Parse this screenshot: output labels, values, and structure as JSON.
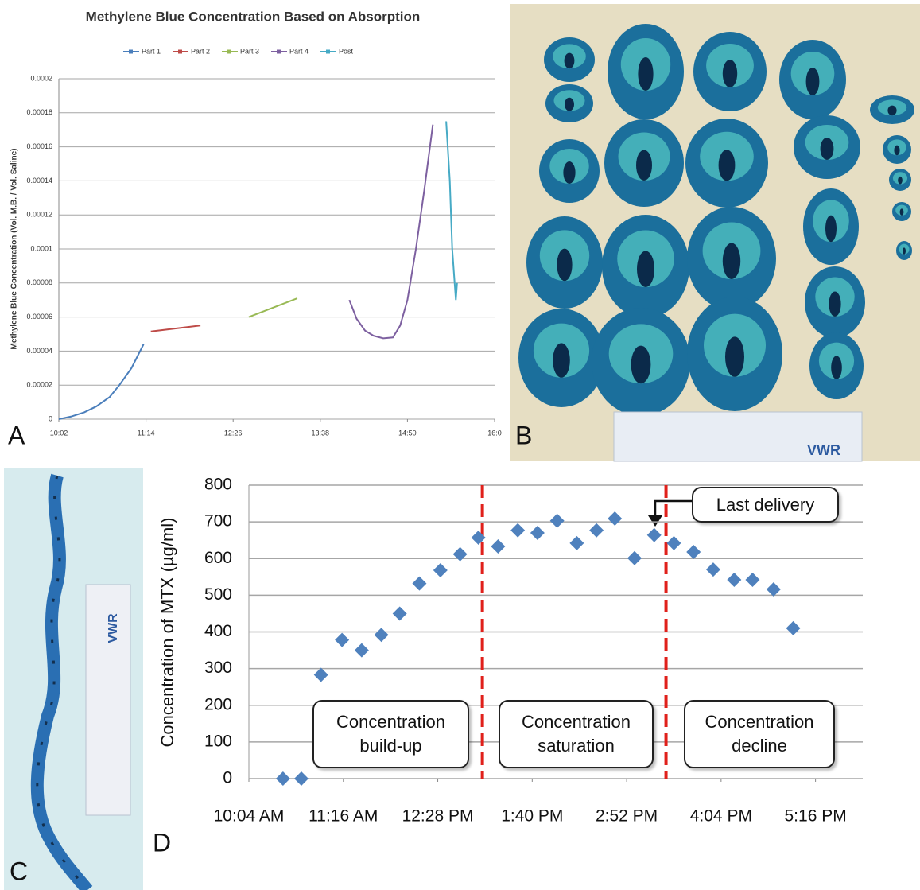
{
  "panel_labels": [
    "A",
    "B",
    "C",
    "D"
  ],
  "photos": [
    {
      "ruler_label": "VWR"
    },
    {
      "ruler_label": "VWR"
    }
  ],
  "chart_data": [
    {
      "type": "line",
      "title": "Methylene Blue Concentration Based on Absorption",
      "y_label": "Methylene Blue Concentration (Vol. M.B. / Vol. Saline)",
      "xlim": [
        602,
        962
      ],
      "xticks": [
        {
          "value": 602,
          "label": "10:02"
        },
        {
          "value": 674,
          "label": "11:14"
        },
        {
          "value": 746,
          "label": "12:26"
        },
        {
          "value": 818,
          "label": "13:38"
        },
        {
          "value": 890,
          "label": "14:50"
        },
        {
          "value": 962,
          "label": "16:0"
        }
      ],
      "ylim": [
        0,
        0.0002
      ],
      "yticks": [
        0,
        2e-05,
        4e-05,
        6e-05,
        8e-05,
        0.0001,
        0.00012,
        0.00014,
        0.00016,
        0.00018,
        0.0002
      ],
      "grid": true,
      "legend": "top",
      "series": [
        {
          "name": "Part 1",
          "color": "#4a7ebb",
          "x": [
            602,
            612,
            623,
            633,
            644,
            652,
            662,
            672
          ],
          "values": [
            0,
            1.5e-06,
            4e-06,
            7.5e-06,
            1.3e-05,
            2e-05,
            3e-05,
            4.4e-05
          ]
        },
        {
          "name": "Part 2",
          "color": "#be4b48",
          "x": [
            678,
            719
          ],
          "values": [
            5.15e-05,
            5.5e-05
          ]
        },
        {
          "name": "Part 3",
          "color": "#98b954",
          "x": [
            759,
            799
          ],
          "values": [
            6e-05,
            7.1e-05
          ]
        },
        {
          "name": "Part 4",
          "color": "#7d60a0",
          "x": [
            842,
            848,
            855,
            862,
            870,
            878,
            884,
            890,
            897,
            904,
            911
          ],
          "values": [
            7e-05,
            5.9e-05,
            5.2e-05,
            4.9e-05,
            4.75e-05,
            4.8e-05,
            5.5e-05,
            7e-05,
            0.0001,
            0.000135,
            0.000173
          ]
        },
        {
          "name": "Post",
          "color": "#46aac5",
          "x": [
            922,
            925,
            927,
            929,
            930,
            931
          ],
          "values": [
            0.000175,
            0.00014,
            0.0001,
            8e-05,
            7e-05,
            8e-05
          ]
        }
      ]
    },
    {
      "type": "scatter",
      "y_label": "Concentration of MTX (µg/ml)",
      "xlim": [
        604,
        1072
      ],
      "xticks": [
        {
          "value": 604,
          "label": "10:04 AM"
        },
        {
          "value": 676,
          "label": "11:16 AM"
        },
        {
          "value": 748,
          "label": "12:28 PM"
        },
        {
          "value": 820,
          "label": "1:40 PM"
        },
        {
          "value": 892,
          "label": "2:52 PM"
        },
        {
          "value": 964,
          "label": "4:04 PM"
        },
        {
          "value": 1036,
          "label": "5:16 PM"
        }
      ],
      "ylim": [
        0,
        800
      ],
      "yticks": [
        0,
        100,
        200,
        300,
        400,
        500,
        600,
        700,
        800
      ],
      "grid": true,
      "color": "#4f81bd",
      "x": [
        630,
        644,
        659,
        675,
        690,
        705,
        719,
        734,
        750,
        765,
        779,
        794,
        809,
        824,
        839,
        854,
        869,
        883,
        898,
        913,
        928,
        943,
        958,
        974,
        988,
        1004,
        1019
      ],
      "values": [
        0,
        0,
        283,
        378,
        350,
        392,
        450,
        532,
        568,
        612,
        657,
        633,
        677,
        670,
        703,
        642,
        677,
        709,
        601,
        664,
        642,
        618,
        570,
        542,
        542,
        516,
        410
      ],
      "vlines": [
        {
          "x": 782,
          "color": "#e0201b"
        },
        {
          "x": 922,
          "color": "#e0201b"
        }
      ],
      "annotations": [
        {
          "text": "Concentration build-up"
        },
        {
          "text": "Concentration saturation"
        },
        {
          "text": "Concentration decline"
        },
        {
          "text": "Last delivery"
        }
      ]
    }
  ]
}
